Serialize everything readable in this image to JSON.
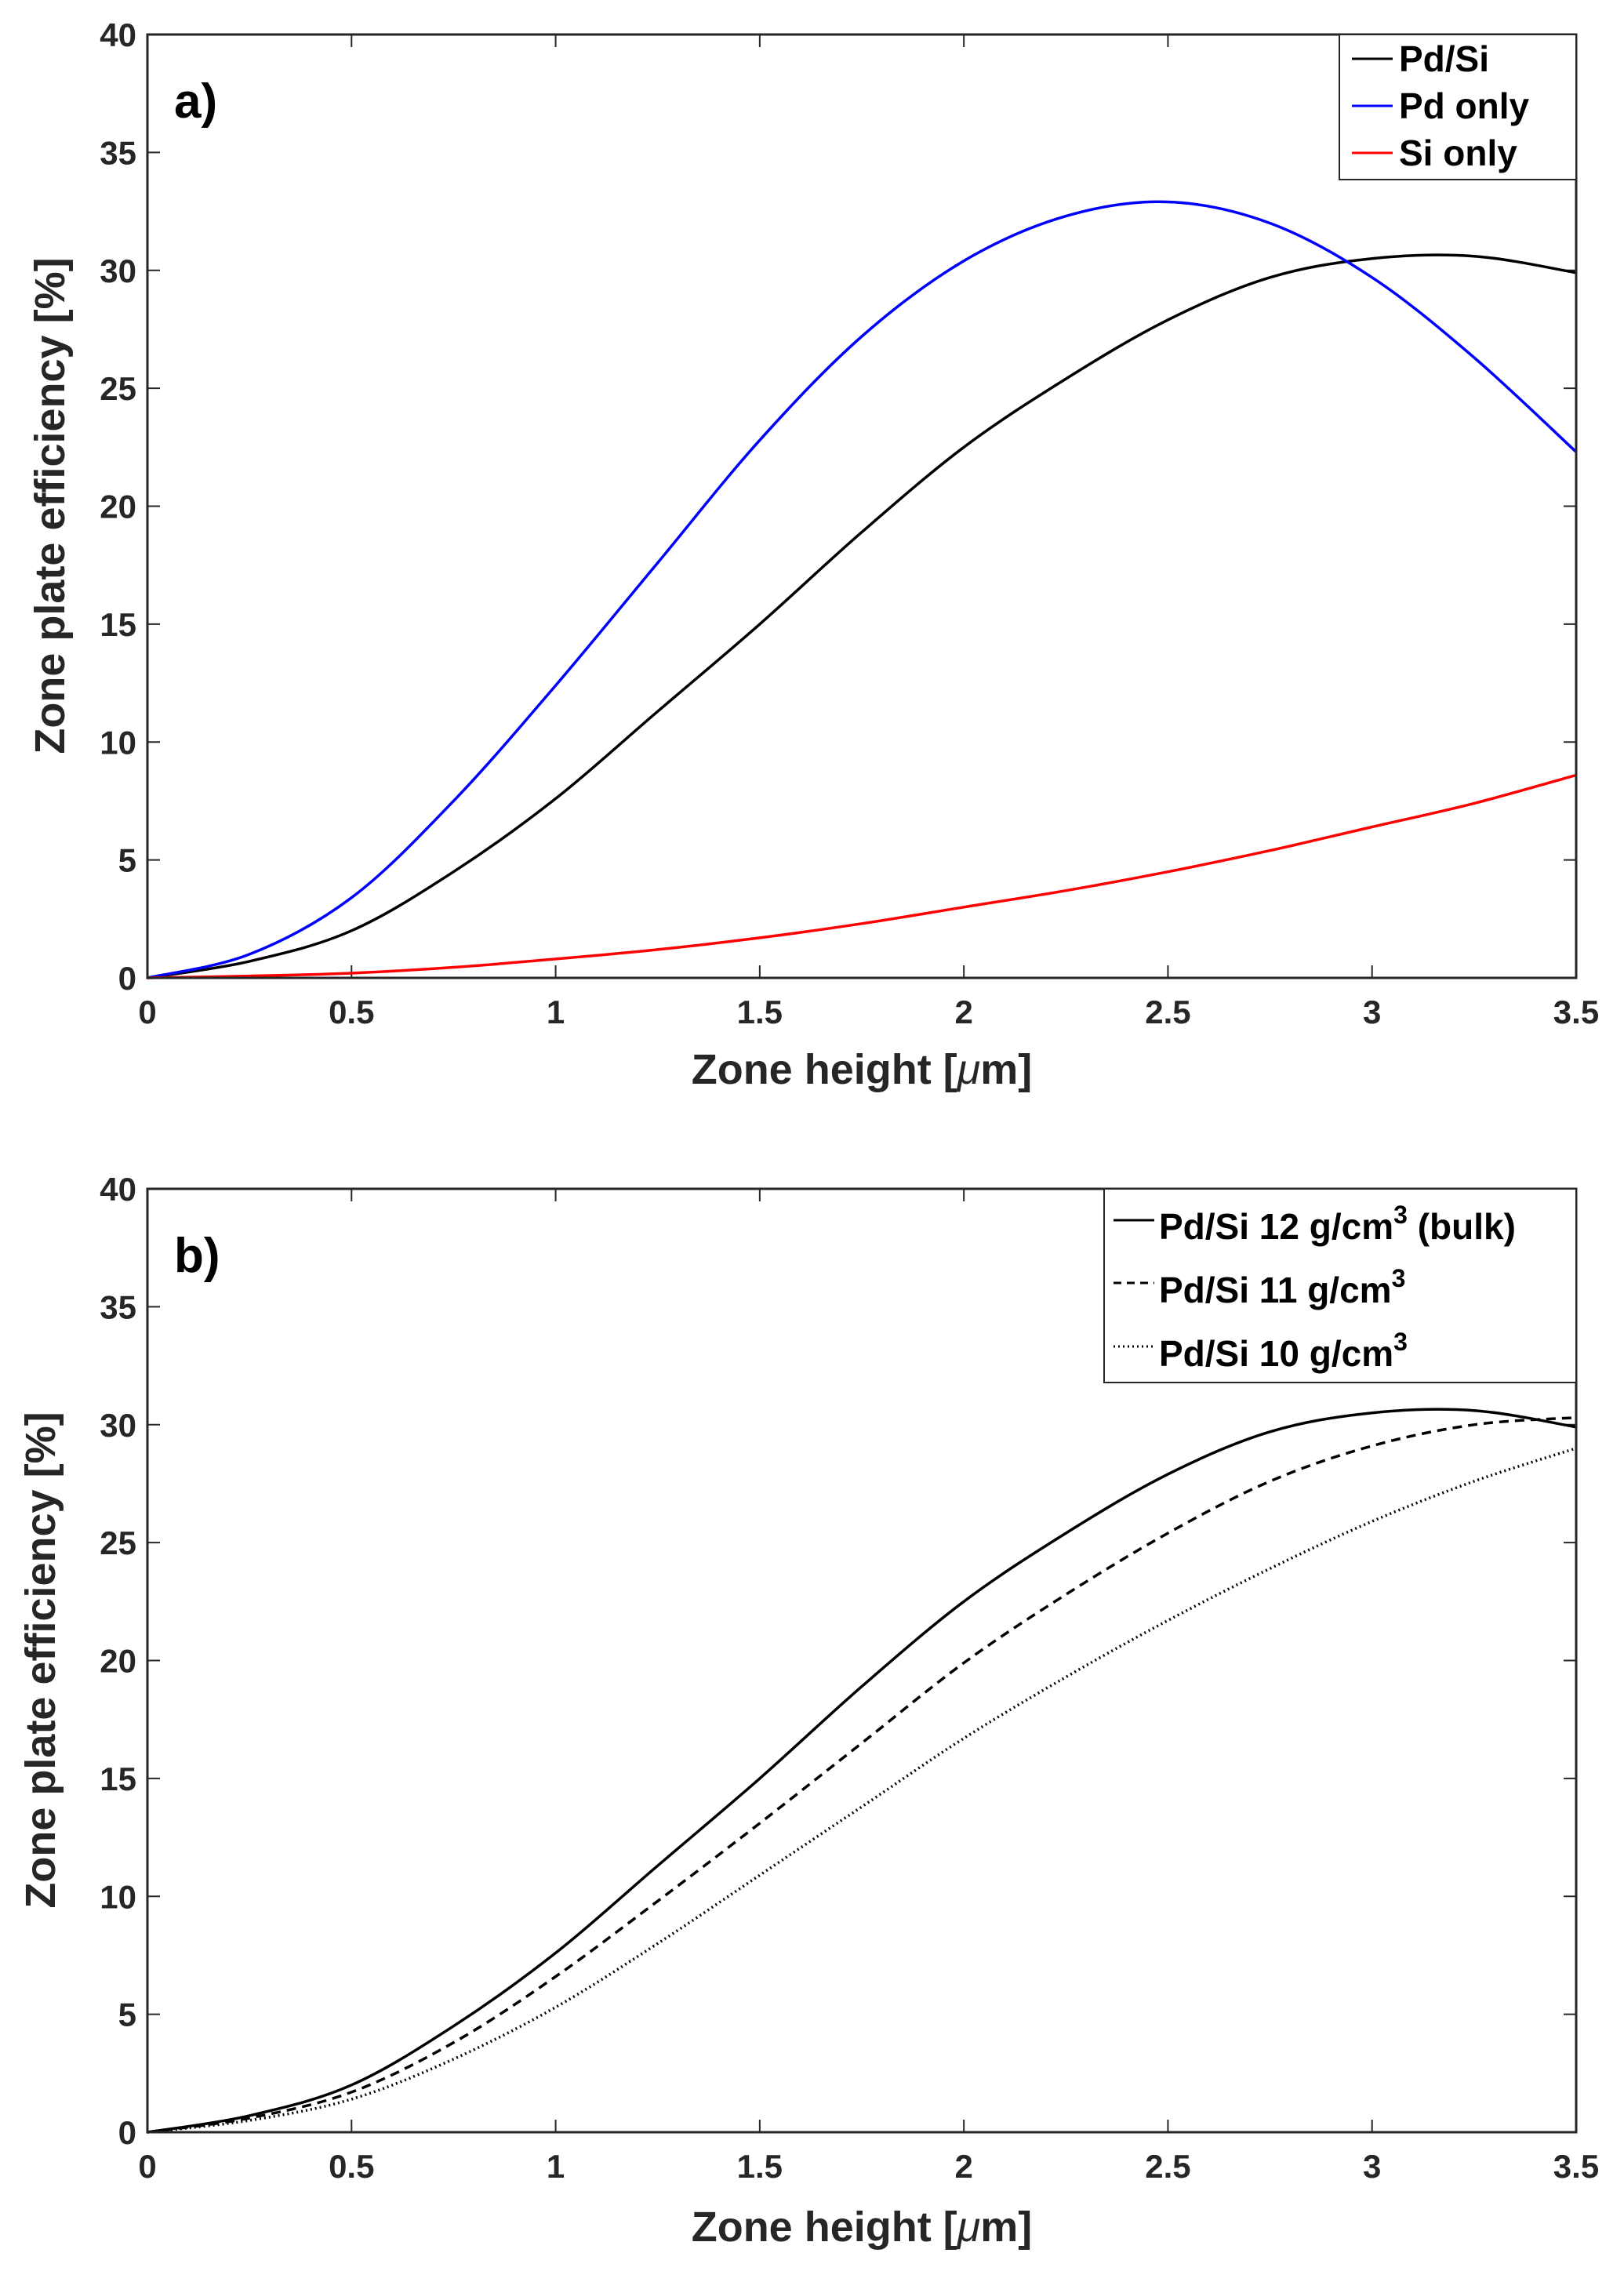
{
  "chart_data": [
    {
      "type": "line",
      "panel_label": "a)",
      "xlabel_prefix": "Zone height [",
      "xlabel_mu": "μ",
      "xlabel_suffix": "m]",
      "ylabel": "Zone plate efficiency [%]",
      "xlim": [
        0,
        3.5
      ],
      "ylim": [
        0,
        40
      ],
      "xticks": [
        "0",
        "0.5",
        "1",
        "1.5",
        "2",
        "2.5",
        "3",
        "3.5"
      ],
      "yticks": [
        "0",
        "5",
        "10",
        "15",
        "20",
        "25",
        "30",
        "35",
        "40"
      ],
      "legend_position": "top-right",
      "x": [
        0,
        0.25,
        0.5,
        0.75,
        1,
        1.25,
        1.5,
        1.75,
        2,
        2.25,
        2.5,
        2.75,
        3,
        3.25,
        3.5
      ],
      "series": [
        {
          "name": "Pd/Si",
          "color": "#000000",
          "dash": "solid",
          "values": [
            0,
            0.7,
            2.0,
            4.5,
            7.6,
            11.3,
            15.0,
            18.9,
            22.5,
            25.4,
            27.9,
            29.7,
            30.5,
            30.6,
            29.9
          ]
        },
        {
          "name": "Pd only",
          "color": "#0000ff",
          "dash": "solid",
          "values": [
            0,
            1.0,
            3.4,
            7.5,
            12.4,
            17.6,
            22.8,
            27.2,
            30.4,
            32.3,
            32.9,
            32.0,
            29.7,
            26.3,
            22.3
          ]
        },
        {
          "name": "Si only",
          "color": "#ff0000",
          "dash": "solid",
          "values": [
            0,
            0.08,
            0.2,
            0.45,
            0.8,
            1.2,
            1.7,
            2.3,
            3.0,
            3.7,
            4.5,
            5.4,
            6.4,
            7.4,
            8.6
          ]
        }
      ]
    },
    {
      "type": "line",
      "panel_label": "b)",
      "xlabel_prefix": "Zone height [",
      "xlabel_mu": "μ",
      "xlabel_suffix": "m]",
      "ylabel": "Zone plate efficiency [%]",
      "xlim": [
        0,
        3.5
      ],
      "ylim": [
        0,
        40
      ],
      "xticks": [
        "0",
        "0.5",
        "1",
        "1.5",
        "2",
        "2.5",
        "3",
        "3.5"
      ],
      "yticks": [
        "0",
        "5",
        "10",
        "15",
        "20",
        "25",
        "30",
        "35",
        "40"
      ],
      "legend_position": "top-right",
      "x": [
        0,
        0.25,
        0.5,
        0.75,
        1,
        1.25,
        1.5,
        1.75,
        2,
        2.25,
        2.5,
        2.75,
        3,
        3.25,
        3.5
      ],
      "series": [
        {
          "name": "Pd/Si 12 g/cm",
          "sup": "3",
          "suffix": " (bulk)",
          "color": "#000000",
          "dash": "solid",
          "values": [
            0,
            0.7,
            2.0,
            4.5,
            7.6,
            11.3,
            15.0,
            18.9,
            22.5,
            25.4,
            27.9,
            29.7,
            30.5,
            30.6,
            29.9
          ]
        },
        {
          "name": "Pd/Si 11 g/cm",
          "sup": "3",
          "suffix": "",
          "color": "#000000",
          "dash": "dashed",
          "values": [
            0,
            0.6,
            1.7,
            3.8,
            6.6,
            9.8,
            13.1,
            16.5,
            19.9,
            22.8,
            25.4,
            27.6,
            29.1,
            30.0,
            30.3
          ]
        },
        {
          "name": "Pd/Si 10 g/cm",
          "sup": "3",
          "suffix": "",
          "color": "#000000",
          "dash": "dotted",
          "values": [
            0,
            0.5,
            1.4,
            3.1,
            5.3,
            8.0,
            10.9,
            13.8,
            16.7,
            19.3,
            21.7,
            23.9,
            25.9,
            27.6,
            29.0
          ]
        }
      ]
    }
  ]
}
